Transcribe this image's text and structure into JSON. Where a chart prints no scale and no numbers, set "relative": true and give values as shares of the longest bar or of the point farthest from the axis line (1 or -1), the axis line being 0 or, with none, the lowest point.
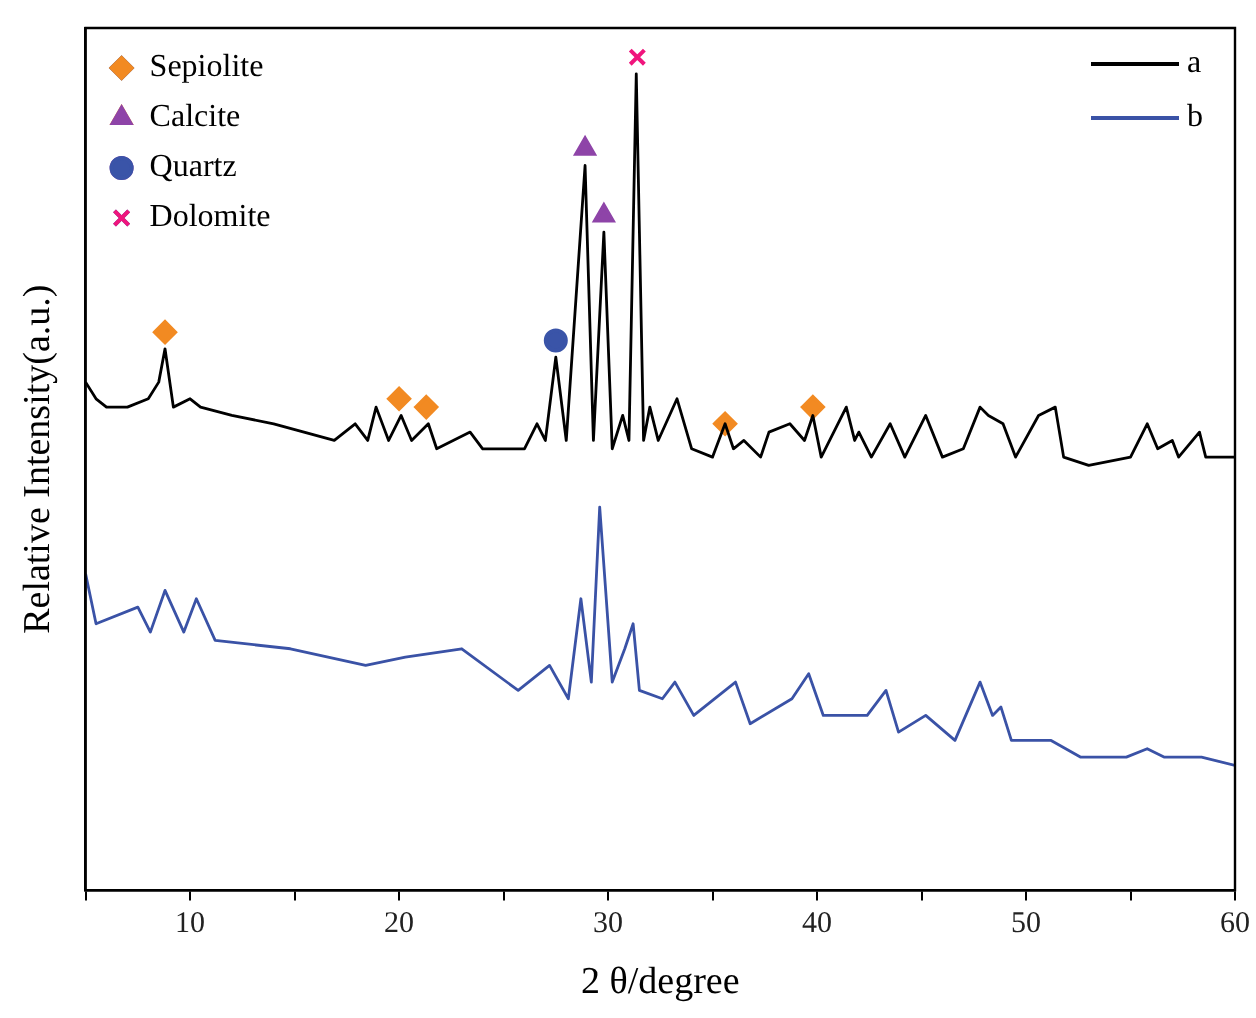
{
  "chart_data": {
    "type": "line",
    "xlabel": "2 θ/degree",
    "ylabel": "Relative Intensity(a.u.)",
    "relative": true,
    "xlim": [
      5,
      60
    ],
    "xticks": [
      {
        "value": 5,
        "label": null
      },
      10,
      {
        "value": 15,
        "label": null
      },
      20,
      {
        "value": 25,
        "label": null
      },
      30,
      {
        "value": 35,
        "label": null
      },
      40,
      {
        "value": 45,
        "label": null
      },
      50,
      {
        "value": 55,
        "label": null
      },
      60
    ],
    "grid": false,
    "legend": "top right",
    "line_style": "solid",
    "series": [
      {
        "name": "a",
        "type": "line",
        "color": "#000000",
        "x": [
          5.0,
          5.5,
          6,
          7,
          8,
          8.5,
          8.8,
          9.2,
          10,
          10.5,
          12,
          14,
          16.9,
          17.9,
          18.5,
          18.9,
          19.5,
          20.1,
          20.6,
          21.4,
          21.8,
          23.4,
          24,
          26,
          26.6,
          27.0,
          27.5,
          28.0,
          28.9,
          29.3,
          29.8,
          30.2,
          30.7,
          31.0,
          31.35,
          31.7,
          32,
          32.4,
          33.3,
          34,
          35,
          35.6,
          36.0,
          36.5,
          37.3,
          37.7,
          38.7,
          39.4,
          39.8,
          40.2,
          41.4,
          41.8,
          42.0,
          42.6,
          43.5,
          44.2,
          45.2,
          46,
          47,
          47.8,
          48.2,
          48.9,
          49.5,
          50.6,
          51.4,
          51.8,
          53,
          55,
          55.8,
          56.3,
          57,
          57.3,
          58.3,
          58.6,
          60
        ],
        "values": [
          0.61,
          0.59,
          0.58,
          0.58,
          0.59,
          0.61,
          0.65,
          0.58,
          0.59,
          0.58,
          0.57,
          0.56,
          0.54,
          0.56,
          0.54,
          0.58,
          0.54,
          0.57,
          0.54,
          0.56,
          0.53,
          0.55,
          0.53,
          0.53,
          0.56,
          0.54,
          0.64,
          0.54,
          0.87,
          0.54,
          0.79,
          0.53,
          0.57,
          0.54,
          0.98,
          0.54,
          0.58,
          0.54,
          0.59,
          0.53,
          0.52,
          0.56,
          0.53,
          0.54,
          0.52,
          0.55,
          0.56,
          0.54,
          0.57,
          0.52,
          0.58,
          0.54,
          0.55,
          0.52,
          0.56,
          0.52,
          0.57,
          0.52,
          0.53,
          0.58,
          0.57,
          0.56,
          0.52,
          0.57,
          0.58,
          0.52,
          0.51,
          0.52,
          0.56,
          0.53,
          0.54,
          0.52,
          0.55,
          0.52,
          0.52
        ]
      },
      {
        "name": "b",
        "type": "line",
        "color": "#3a52a6",
        "x": [
          5.0,
          5.5,
          7.5,
          8.1,
          8.8,
          9.7,
          10.3,
          11.2,
          14.8,
          18.4,
          20.3,
          23.0,
          25.7,
          27.2,
          28.1,
          28.7,
          29.2,
          29.6,
          30.2,
          30.8,
          31.2,
          31.5,
          32.6,
          33.2,
          34.1,
          36.1,
          36.8,
          38.8,
          39.6,
          40.3,
          42.4,
          43.3,
          43.9,
          45.2,
          46.6,
          47.8,
          48.4,
          48.8,
          49.3,
          51.2,
          52.6,
          54.8,
          55.8,
          56.6,
          58.4,
          60
        ],
        "values": [
          0.38,
          0.32,
          0.34,
          0.31,
          0.36,
          0.31,
          0.35,
          0.3,
          0.29,
          0.27,
          0.28,
          0.29,
          0.24,
          0.27,
          0.23,
          0.35,
          0.25,
          0.46,
          0.25,
          0.29,
          0.32,
          0.24,
          0.23,
          0.25,
          0.21,
          0.25,
          0.2,
          0.23,
          0.26,
          0.21,
          0.21,
          0.24,
          0.19,
          0.21,
          0.18,
          0.25,
          0.21,
          0.22,
          0.18,
          0.18,
          0.16,
          0.16,
          0.17,
          0.16,
          0.16,
          0.15
        ]
      },
      {
        "name": "Sepiolite",
        "type": "scatter",
        "marker": "diamond",
        "color": "#f28a22",
        "x": [
          8.8,
          20.0,
          21.3,
          35.6,
          39.8
        ],
        "values": [
          0.67,
          0.59,
          0.58,
          0.56,
          0.58
        ]
      },
      {
        "name": "Calcite",
        "type": "scatter",
        "marker": "triangle",
        "color": "#8e44a8",
        "x": [
          28.9,
          29.8
        ],
        "values": [
          0.89,
          0.81
        ]
      },
      {
        "name": "Quartz",
        "type": "scatter",
        "marker": "circle",
        "color": "#3a54a8",
        "x": [
          27.5
        ],
        "values": [
          0.66
        ]
      },
      {
        "name": "Dolomite",
        "type": "scatter",
        "marker": "cross",
        "color": "#f0157d",
        "x": [
          31.4
        ],
        "values": [
          1.0
        ]
      }
    ]
  }
}
